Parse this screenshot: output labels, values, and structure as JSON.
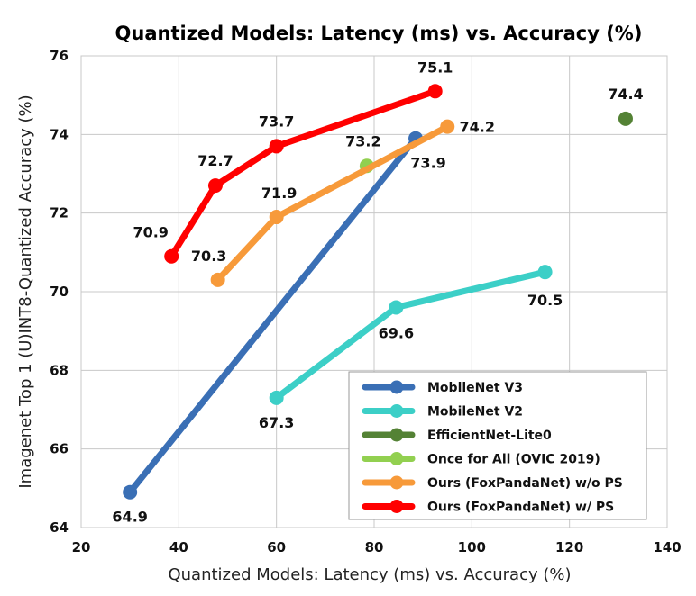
{
  "chart_data": {
    "type": "line",
    "title": "Quantized Models: Latency (ms) vs. Accuracy (%)",
    "xlabel": "Quantized Models: Latency (ms) vs. Accuracy (%)",
    "ylabel": "Imagenet Top 1 (U)INT8-Quantized Accuracy (%)",
    "xlim": [
      20,
      140
    ],
    "ylim": [
      64,
      76
    ],
    "xticks": [
      20,
      40,
      60,
      80,
      100,
      120,
      140
    ],
    "yticks": [
      64,
      66,
      68,
      70,
      72,
      74,
      76
    ],
    "grid": true,
    "legend_position": "bottom-right",
    "series": [
      {
        "name": "MobileNet V3",
        "color": "#3a6fb5",
        "points": [
          {
            "x": 30,
            "y": 64.9
          },
          {
            "x": 88.5,
            "y": 73.9
          }
        ],
        "labels": [
          "64.9",
          "73.9"
        ]
      },
      {
        "name": "MobileNet V2",
        "color": "#3ccfc7",
        "points": [
          {
            "x": 60,
            "y": 67.3
          },
          {
            "x": 84.5,
            "y": 69.6
          },
          {
            "x": 115,
            "y": 70.5
          }
        ],
        "labels": [
          "67.3",
          "69.6",
          "70.5"
        ]
      },
      {
        "name": "EfficientNet-Lite0",
        "color": "#548235",
        "points": [
          {
            "x": 131.5,
            "y": 74.4
          }
        ],
        "labels": [
          "74.4"
        ]
      },
      {
        "name": "Once for All (OVIC 2019)",
        "color": "#92d050",
        "points": [
          {
            "x": 78.5,
            "y": 73.2
          }
        ],
        "labels": [
          "73.2"
        ]
      },
      {
        "name": "Ours (FoxPandaNet) w/o PS",
        "color": "#f79a3a",
        "points": [
          {
            "x": 48,
            "y": 70.3
          },
          {
            "x": 60,
            "y": 71.9
          },
          {
            "x": 95,
            "y": 74.2
          }
        ],
        "labels": [
          "70.3",
          "71.9",
          "74.2"
        ]
      },
      {
        "name": "Ours (FoxPandaNet) w/ PS",
        "color": "#ff0000",
        "points": [
          {
            "x": 38.5,
            "y": 70.9
          },
          {
            "x": 47.5,
            "y": 72.7
          },
          {
            "x": 60,
            "y": 73.7
          },
          {
            "x": 92.5,
            "y": 75.1
          }
        ],
        "labels": [
          "70.9",
          "72.7",
          "73.7",
          "75.1"
        ]
      }
    ]
  }
}
